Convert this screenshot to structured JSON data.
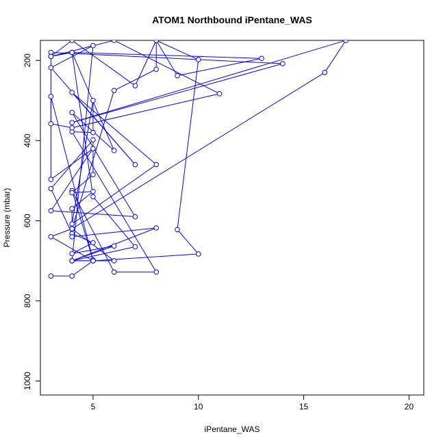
{
  "chart_data": {
    "type": "line",
    "title": "ATOM1 Northbound iPentane_WAS",
    "xlabel": "iPentane_WAS",
    "ylabel": "Pressure (mbar)",
    "xlim": [
      2.5,
      20.7
    ],
    "ylim": [
      1035,
      150
    ],
    "y_reversed": true,
    "grid": false,
    "xticks": [
      5,
      10,
      15,
      20
    ],
    "yticks": [
      200,
      400,
      600,
      800,
      1000
    ],
    "series": [
      {
        "color": "#0000ff",
        "points": [
          [
            3,
            738
          ],
          [
            4,
            738
          ],
          [
            5,
            700
          ],
          [
            3,
            640
          ],
          [
            4,
            620
          ],
          [
            6,
            700
          ],
          [
            4,
            700
          ],
          [
            7,
            665
          ],
          [
            5,
            540
          ],
          [
            4,
            180
          ],
          [
            6,
            425
          ],
          [
            4,
            330
          ],
          [
            7,
            590
          ],
          [
            3,
            575
          ],
          [
            5,
            420
          ],
          [
            3,
            497
          ],
          [
            3,
            290
          ],
          [
            5,
            698
          ],
          [
            4,
            525
          ],
          [
            6,
            728
          ],
          [
            8,
            728
          ],
          [
            4,
            378
          ],
          [
            5,
            380
          ],
          [
            5,
            300
          ],
          [
            4,
            608
          ],
          [
            8,
            460
          ],
          [
            4,
            280
          ],
          [
            7,
            460
          ],
          [
            3,
            218
          ],
          [
            5,
            163
          ],
          [
            4,
            700
          ],
          [
            6,
            663
          ],
          [
            4,
            682
          ],
          [
            5,
            655
          ],
          [
            4,
            632
          ],
          [
            3,
            520
          ],
          [
            5,
            398
          ],
          [
            5,
            485
          ],
          [
            4,
            530
          ],
          [
            5,
            527
          ],
          [
            4,
            570
          ],
          [
            4,
            640
          ],
          [
            8,
            618
          ],
          [
            4,
            700
          ],
          [
            5,
            700
          ],
          [
            10,
            683
          ],
          [
            9,
            622
          ],
          [
            10,
            198
          ],
          [
            8,
            150
          ],
          [
            8,
            222
          ],
          [
            6,
            275
          ],
          [
            4,
            620
          ],
          [
            16,
            230
          ],
          [
            17,
            150
          ],
          [
            4,
            355
          ],
          [
            14,
            208
          ],
          [
            3,
            180
          ],
          [
            3,
            358
          ],
          [
            4,
            368
          ],
          [
            11,
            283
          ],
          [
            6,
            150
          ],
          [
            3,
            190
          ],
          [
            4,
            180
          ],
          [
            13,
            195
          ],
          [
            9,
            238
          ],
          [
            8,
            150
          ],
          [
            7,
            263
          ],
          [
            4,
            150
          ],
          [
            3,
            190
          ],
          [
            4,
            180
          ]
        ]
      }
    ]
  }
}
